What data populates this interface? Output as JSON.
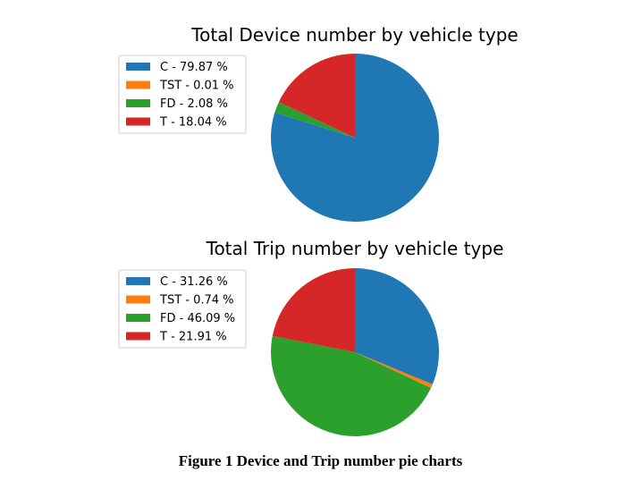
{
  "figure_caption": "Figure 1 Device and Trip number pie charts",
  "chart_data": [
    {
      "type": "pie",
      "title": "Total Device number by vehicle type",
      "start_angle_deg": 90,
      "direction": "clockwise-from-top",
      "slices": [
        {
          "label": "C - 79.87 %",
          "category": "C",
          "value": 79.87,
          "color": "#1f77b4"
        },
        {
          "label": "TST - 0.01 %",
          "category": "TST",
          "value": 0.01,
          "color": "#ff7f0e"
        },
        {
          "label": "FD - 2.08 %",
          "category": "FD",
          "value": 2.08,
          "color": "#2ca02c"
        },
        {
          "label": "T - 18.04 %",
          "category": "T",
          "value": 18.04,
          "color": "#d62728"
        }
      ],
      "legend_position": "upper-left"
    },
    {
      "type": "pie",
      "title": "Total Trip number by vehicle type",
      "start_angle_deg": 90,
      "direction": "clockwise-from-top",
      "slices": [
        {
          "label": "C - 31.26 %",
          "category": "C",
          "value": 31.26,
          "color": "#1f77b4"
        },
        {
          "label": "TST - 0.74 %",
          "category": "TST",
          "value": 0.74,
          "color": "#ff7f0e"
        },
        {
          "label": "FD - 46.09 %",
          "category": "FD",
          "value": 46.09,
          "color": "#2ca02c"
        },
        {
          "label": "T - 21.91 %",
          "category": "T",
          "value": 21.91,
          "color": "#d62728"
        }
      ],
      "legend_position": "upper-left"
    }
  ]
}
